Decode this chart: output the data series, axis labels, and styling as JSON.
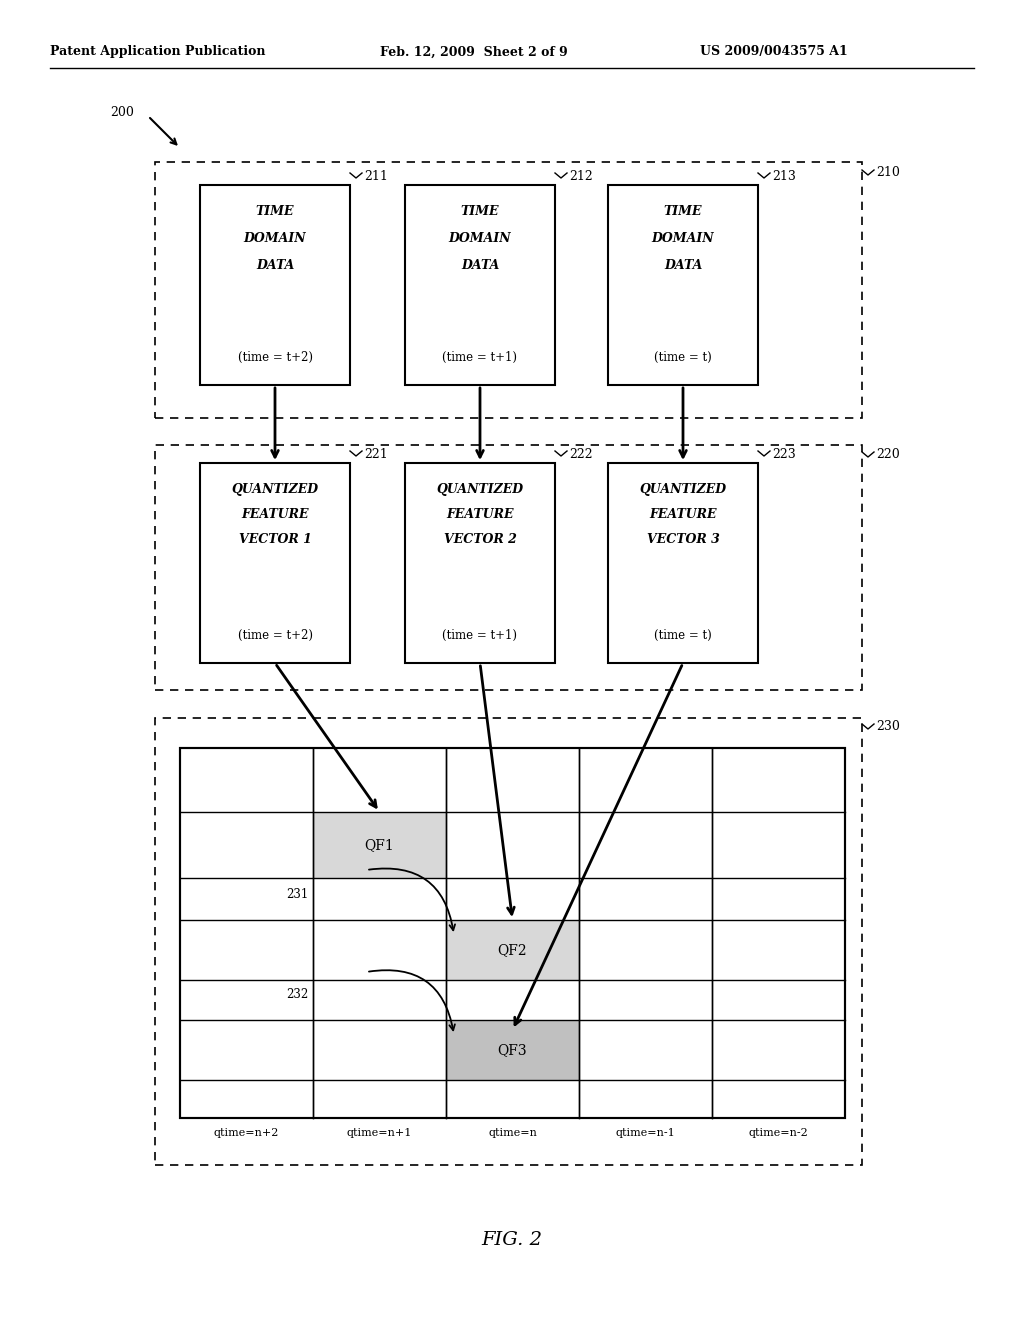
{
  "bg_color": "#ffffff",
  "header_text": "Patent Application Publication",
  "header_date": "Feb. 12, 2009  Sheet 2 of 9",
  "header_patent": "US 2009/0043575 A1",
  "fig_label": "FIG. 2",
  "label_200": "200",
  "label_210": "210",
  "label_220": "220",
  "label_230": "230",
  "box210_labels": [
    "211",
    "212",
    "213"
  ],
  "box220_labels": [
    "221",
    "222",
    "223"
  ],
  "box210_title": [
    "TIME\nDOMAIN\nDATA",
    "TIME\nDOMAIN\nDATA",
    "TIME\nDOMAIN\nDATA"
  ],
  "box210_sub": [
    "(time = t+2)",
    "(time = t+1)",
    "(time = t)"
  ],
  "box220_title": [
    "QUANTIZED\nFEATURE\nVECTOR 1",
    "QUANTIZED\nFEATURE\nVECTOR 2",
    "QUANTIZED\nFEATURE\nVECTOR 3"
  ],
  "box220_sub": [
    "(time = t+2)",
    "(time = t+1)",
    "(time = t)"
  ],
  "qf_labels": [
    "QF1",
    "QF2",
    "QF3"
  ],
  "qtime_labels": [
    "qtime=n+2",
    "qtime=n+1",
    "qtime=n",
    "qtime=n-1",
    "qtime=n-2"
  ],
  "ref_231": "231",
  "ref_232": "232"
}
